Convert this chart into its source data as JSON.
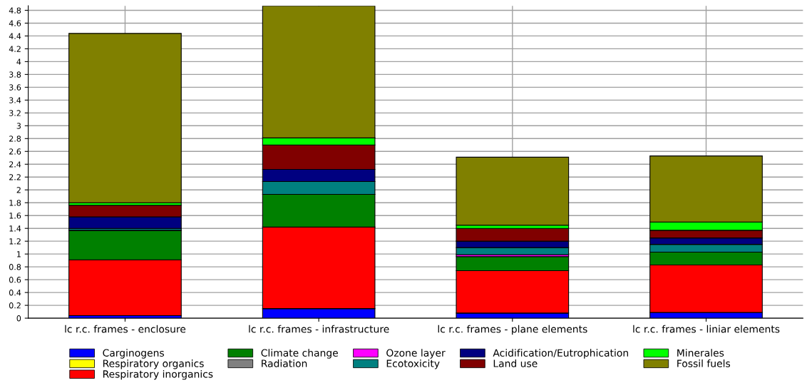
{
  "chart_data": {
    "type": "bar",
    "stacked": true,
    "categories": [
      "lc r.c. frames - enclosure",
      "lc r.c. frames - infrastructure",
      "lc r.c. frames - plane elements",
      "lc r.c. frames - liniar elements"
    ],
    "ylim": [
      0,
      4.87
    ],
    "yticks": [
      0,
      0.2,
      0.4,
      0.6,
      0.8,
      1,
      1.2,
      1.4,
      1.6,
      1.8,
      2,
      2.2,
      2.4,
      2.6,
      2.8,
      3,
      3.2,
      3.4,
      3.6,
      3.8,
      4,
      4.2,
      4.4,
      4.6,
      4.8
    ],
    "grid": true,
    "legend": "bottom",
    "series": [
      {
        "name": "Carginogens",
        "color": "#0000ff",
        "values": [
          0.04,
          0.15,
          0.08,
          0.09
        ]
      },
      {
        "name": "Respiratory organics",
        "color": "#ffff00",
        "values": [
          0,
          0,
          0,
          0
        ]
      },
      {
        "name": "Respiratory inorganics",
        "color": "#ff0000",
        "values": [
          0.87,
          1.27,
          0.66,
          0.74
        ]
      },
      {
        "name": "Climate change",
        "color": "#008000",
        "values": [
          0.46,
          0.51,
          0.22,
          0.2
        ]
      },
      {
        "name": "Radiation",
        "color": "#808080",
        "values": [
          0,
          0,
          0,
          0
        ]
      },
      {
        "name": "Ozone layer",
        "color": "#ff00ff",
        "values": [
          0,
          0,
          0.03,
          0
        ]
      },
      {
        "name": "Ecotoxicity",
        "color": "#008080",
        "values": [
          0.03,
          0.2,
          0.11,
          0.12
        ]
      },
      {
        "name": "Acidification/Eutrophication",
        "color": "#000080",
        "values": [
          0.18,
          0.19,
          0.1,
          0.1
        ]
      },
      {
        "name": "Land use",
        "color": "#800000",
        "values": [
          0.18,
          0.38,
          0.2,
          0.12
        ]
      },
      {
        "name": "Minerales",
        "color": "#00ff00",
        "values": [
          0.04,
          0.11,
          0.05,
          0.13
        ]
      },
      {
        "name": "Fossil fuels",
        "color": "#808000",
        "values": [
          2.64,
          2.06,
          1.06,
          1.03
        ]
      }
    ]
  }
}
